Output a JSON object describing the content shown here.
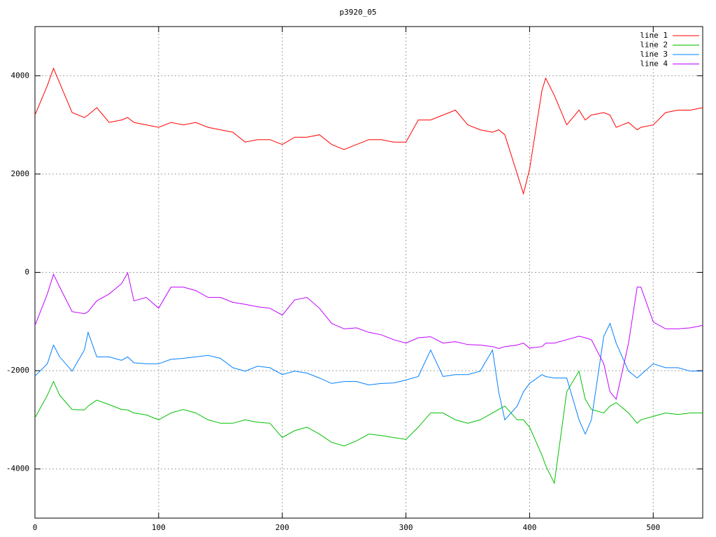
{
  "chart_data": {
    "type": "line",
    "title": "p3920_05",
    "x": [
      0,
      10,
      15,
      20,
      30,
      40,
      43,
      50,
      60,
      70,
      75,
      80,
      90,
      100,
      110,
      120,
      130,
      140,
      150,
      160,
      170,
      180,
      190,
      200,
      210,
      220,
      230,
      240,
      250,
      260,
      270,
      280,
      290,
      300,
      310,
      320,
      330,
      340,
      350,
      360,
      370,
      375,
      380,
      390,
      395,
      400,
      410,
      413,
      420,
      430,
      440,
      445,
      450,
      460,
      465,
      470,
      480,
      487,
      490,
      500,
      510,
      520,
      530,
      540
    ],
    "series": [
      {
        "name": "line 1",
        "color": "#ff0000",
        "values": [
          3200,
          3800,
          4150,
          3850,
          3250,
          3150,
          3200,
          3350,
          3050,
          3100,
          3150,
          3050,
          3000,
          2950,
          3050,
          3000,
          3050,
          2950,
          2900,
          2850,
          2650,
          2700,
          2700,
          2600,
          2750,
          2750,
          2800,
          2600,
          2500,
          2600,
          2700,
          2700,
          2650,
          2650,
          3100,
          3100,
          3200,
          3300,
          3000,
          2900,
          2850,
          2900,
          2800,
          2000,
          1600,
          2100,
          3700,
          3950,
          3600,
          3000,
          3300,
          3100,
          3200,
          3250,
          3200,
          2950,
          3050,
          2900,
          2950,
          3000,
          3250,
          3300,
          3300,
          3350
        ]
      },
      {
        "name": "line 2",
        "color": "#00c000",
        "values": [
          -2960,
          -2500,
          -2220,
          -2500,
          -2790,
          -2800,
          -2720,
          -2600,
          -2690,
          -2790,
          -2800,
          -2860,
          -2900,
          -3000,
          -2860,
          -2790,
          -2860,
          -3000,
          -3070,
          -3070,
          -3000,
          -3050,
          -3070,
          -3360,
          -3220,
          -3150,
          -3290,
          -3460,
          -3530,
          -3430,
          -3290,
          -3320,
          -3360,
          -3400,
          -3150,
          -2860,
          -2860,
          -3000,
          -3070,
          -3000,
          -2860,
          -2790,
          -2720,
          -3000,
          -3000,
          -3150,
          -3720,
          -3930,
          -4290,
          -2430,
          -2010,
          -2580,
          -2790,
          -2860,
          -2720,
          -2650,
          -2860,
          -3070,
          -3000,
          -2930,
          -2860,
          -2890,
          -2860,
          -2860
        ]
      },
      {
        "name": "line 3",
        "color": "#0080ff",
        "values": [
          -2110,
          -1860,
          -1480,
          -1720,
          -2010,
          -1580,
          -1220,
          -1720,
          -1720,
          -1790,
          -1720,
          -1840,
          -1860,
          -1860,
          -1770,
          -1750,
          -1720,
          -1690,
          -1750,
          -1940,
          -2010,
          -1910,
          -1940,
          -2080,
          -2010,
          -2050,
          -2150,
          -2260,
          -2220,
          -2220,
          -2290,
          -2260,
          -2250,
          -2190,
          -2120,
          -1580,
          -2120,
          -2080,
          -2080,
          -2010,
          -1580,
          -2430,
          -3000,
          -2720,
          -2430,
          -2260,
          -2080,
          -2120,
          -2150,
          -2150,
          -3000,
          -3290,
          -3000,
          -1300,
          -1040,
          -1440,
          -2010,
          -2150,
          -2080,
          -1860,
          -1940,
          -1940,
          -2010,
          -2010
        ]
      },
      {
        "name": "line 4",
        "color": "#c000ff",
        "values": [
          -1080,
          -440,
          -40,
          -300,
          -800,
          -840,
          -800,
          -580,
          -440,
          -230,
          -10,
          -580,
          -510,
          -730,
          -300,
          -300,
          -370,
          -510,
          -510,
          -610,
          -650,
          -700,
          -730,
          -870,
          -560,
          -510,
          -730,
          -1040,
          -1150,
          -1130,
          -1220,
          -1270,
          -1370,
          -1440,
          -1330,
          -1310,
          -1440,
          -1410,
          -1470,
          -1480,
          -1510,
          -1550,
          -1510,
          -1480,
          -1440,
          -1540,
          -1510,
          -1440,
          -1440,
          -1370,
          -1300,
          -1330,
          -1370,
          -1860,
          -2430,
          -2580,
          -1440,
          -300,
          -300,
          -1010,
          -1150,
          -1150,
          -1130,
          -1080
        ]
      }
    ],
    "xlim": [
      0,
      540
    ],
    "xticks": [
      0,
      100,
      200,
      300,
      400,
      500
    ],
    "ylim": [
      -5000,
      5000
    ],
    "yticks": [
      -4000,
      -2000,
      0,
      2000,
      4000
    ],
    "grid": true,
    "legend": "top-right"
  }
}
